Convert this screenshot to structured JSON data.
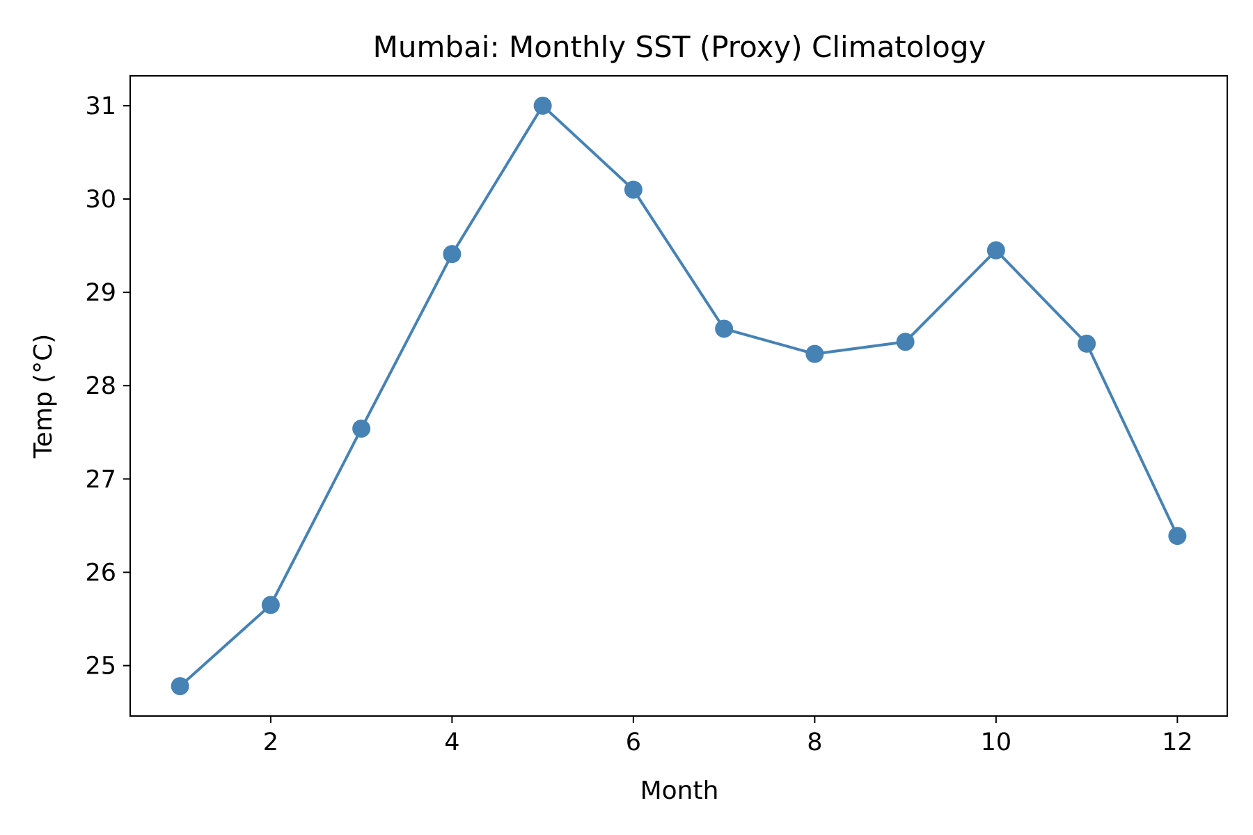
{
  "chart_data": {
    "type": "line",
    "title": "Mumbai: Monthly SST (Proxy) Climatology",
    "xlabel": "Month",
    "ylabel": "Temp (°C)",
    "x": [
      1,
      2,
      3,
      4,
      5,
      6,
      7,
      8,
      9,
      10,
      11,
      12
    ],
    "series": [
      {
        "values": [
          24.78,
          25.65,
          27.54,
          29.41,
          31.0,
          30.1,
          28.61,
          28.34,
          28.47,
          29.45,
          28.45,
          26.39
        ],
        "color": "#4682b4"
      }
    ],
    "xlim": [
      0.45,
      12.55
    ],
    "ylim": [
      24.46,
      31.32
    ],
    "xticks": [
      2,
      4,
      6,
      8,
      10,
      12
    ],
    "yticks": [
      25,
      26,
      27,
      28,
      29,
      30,
      31
    ],
    "grid": false,
    "markers": "circle"
  }
}
